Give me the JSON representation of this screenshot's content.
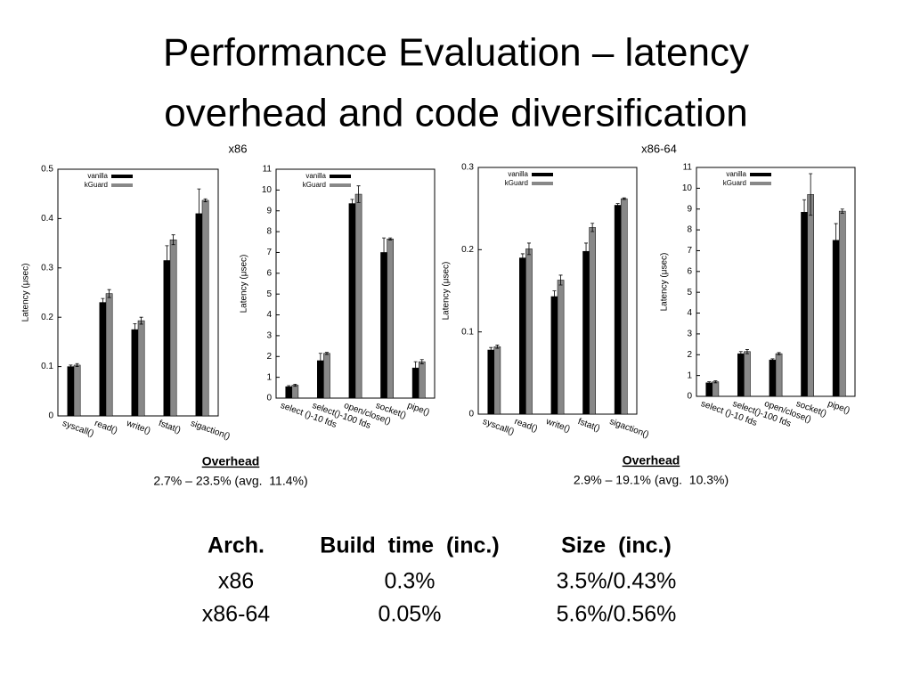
{
  "title_lines": [
    "Performance Evaluation – latency",
    "overhead and code diversification"
  ],
  "groups": [
    {
      "label": "x86",
      "overhead_title": "Overhead",
      "overhead": "2.7% – 23.5% (avg.  11.4%)"
    },
    {
      "label": "x86-64",
      "overhead_title": "Overhead",
      "overhead": "2.9% – 19.1% (avg.  10.3%)"
    }
  ],
  "chart_data": [
    {
      "type": "bar",
      "ylabel": "Latency (μsec)",
      "categories": [
        "syscall()",
        "read()",
        "write()",
        "fstat()",
        "sigaction()"
      ],
      "series": [
        {
          "name": "vanilla",
          "color": "#000000",
          "values": [
            0.1,
            0.23,
            0.175,
            0.315,
            0.41
          ],
          "errors": [
            0.003,
            0.008,
            0.012,
            0.03,
            0.05
          ]
        },
        {
          "name": "kGuard",
          "color": "#888888",
          "values": [
            0.103,
            0.248,
            0.193,
            0.357,
            0.437
          ],
          "errors": [
            0.003,
            0.008,
            0.007,
            0.01,
            0.003
          ]
        }
      ],
      "ylim": [
        0,
        0.5
      ],
      "yticks": [
        0,
        0.1,
        0.2,
        0.3,
        0.4,
        0.5
      ]
    },
    {
      "type": "bar",
      "ylabel": "Latency (μsec)",
      "categories": [
        "select ()-10 fds",
        "select()-100 fds",
        "open/close()",
        "socket()",
        "pipe()"
      ],
      "series": [
        {
          "name": "vanilla",
          "color": "#000000",
          "values": [
            0.55,
            1.8,
            9.35,
            7.0,
            1.45
          ],
          "errors": [
            0.05,
            0.35,
            0.2,
            0.7,
            0.3
          ]
        },
        {
          "name": "kGuard",
          "color": "#888888",
          "values": [
            0.62,
            2.15,
            9.8,
            7.65,
            1.75
          ],
          "errors": [
            0.05,
            0.05,
            0.4,
            0.05,
            0.1
          ]
        }
      ],
      "ylim": [
        0,
        11
      ],
      "yticks": [
        0,
        1,
        2,
        3,
        4,
        5,
        6,
        7,
        8,
        9,
        10,
        11
      ]
    },
    {
      "type": "bar",
      "ylabel": "Latency (μsec)",
      "categories": [
        "syscall()",
        "read()",
        "write()",
        "fstat()",
        "sigaction()"
      ],
      "series": [
        {
          "name": "vanilla",
          "color": "#000000",
          "values": [
            0.078,
            0.19,
            0.143,
            0.198,
            0.254
          ],
          "errors": [
            0.003,
            0.005,
            0.007,
            0.01,
            0.002
          ]
        },
        {
          "name": "kGuard",
          "color": "#888888",
          "values": [
            0.082,
            0.201,
            0.163,
            0.227,
            0.262
          ],
          "errors": [
            0.002,
            0.007,
            0.006,
            0.005,
            0.001
          ]
        }
      ],
      "ylim": [
        0,
        0.3
      ],
      "yticks": [
        0,
        0.1,
        0.2,
        0.3
      ]
    },
    {
      "type": "bar",
      "ylabel": "Latency (μsec)",
      "categories": [
        "select ()-10 fds",
        "select()-100 fds",
        "open/close()",
        "socket()",
        "pipe()"
      ],
      "series": [
        {
          "name": "vanilla",
          "color": "#000000",
          "values": [
            0.65,
            2.05,
            1.75,
            8.85,
            7.5
          ],
          "errors": [
            0.05,
            0.1,
            0.05,
            0.6,
            0.8
          ]
        },
        {
          "name": "kGuard",
          "color": "#888888",
          "values": [
            0.7,
            2.15,
            2.05,
            9.7,
            8.9
          ],
          "errors": [
            0.05,
            0.1,
            0.05,
            1.0,
            0.1
          ]
        }
      ],
      "ylim": [
        0,
        11
      ],
      "yticks": [
        0,
        1,
        2,
        3,
        4,
        5,
        6,
        7,
        8,
        9,
        10,
        11
      ]
    }
  ],
  "table": {
    "header": [
      "Arch.",
      "Build  time  (inc.)",
      "Size  (inc.)"
    ],
    "rows": [
      [
        "x86",
        "0.3%",
        "3.5%/0.43%"
      ],
      [
        "x86-64",
        "0.05%",
        "5.6%/0.56%"
      ]
    ]
  }
}
